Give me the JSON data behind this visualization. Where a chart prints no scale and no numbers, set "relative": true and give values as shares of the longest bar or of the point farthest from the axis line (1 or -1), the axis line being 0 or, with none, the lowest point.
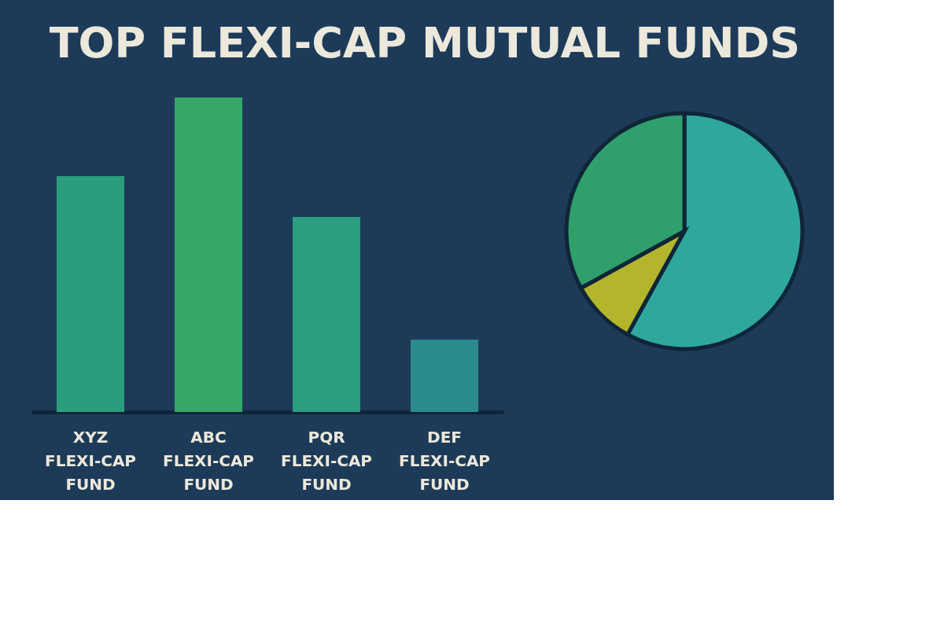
{
  "chart_data": [
    {
      "type": "bar",
      "title": "TOP FLEXI-CAP MUTUAL FUNDS",
      "relative": true,
      "categories": [
        "XYZ\nFLEXI-CAP\nFUND",
        "ABC\nFLEXI-CAP\nFUND",
        "PQR\nFLEXI-CAP\nFUND",
        "DEF\nFLEXI-CAP\nFUND"
      ],
      "values": [
        0.75,
        1,
        0.62,
        0.23
      ],
      "colors": [
        "#2a9d7e",
        "#35a768",
        "#2b9d80",
        "#2b8a8c"
      ]
    },
    {
      "type": "pie",
      "categories": [
        null,
        null,
        null
      ],
      "values": [
        58,
        9,
        33
      ],
      "colors": [
        "#2fa89c",
        "#b3b52c",
        "#2f9f6c"
      ]
    }
  ]
}
